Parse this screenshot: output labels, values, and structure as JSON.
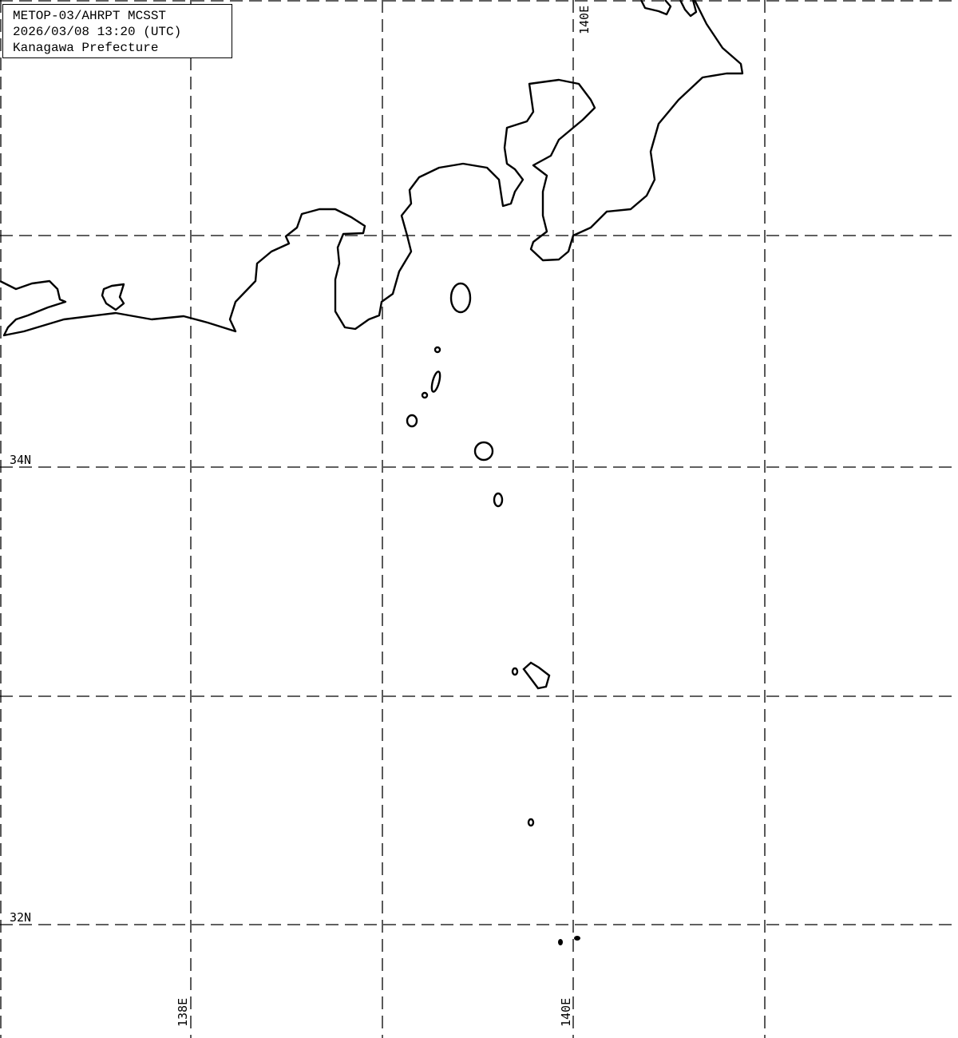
{
  "title_box": {
    "line1": "METOP-03/AHRPT MCSST",
    "line2": "2026/03/08 13:20 (UTC)",
    "line3": "Kanagawa Prefecture"
  },
  "grid_labels": {
    "lat_34": "34N",
    "lat_32": "32N",
    "lon_138": "138E",
    "lon_140_bottom": "140E",
    "lon_140_top": "140E"
  },
  "colors": {
    "background": "#ffffff",
    "coastline": "#000000",
    "grid": "#000000"
  }
}
